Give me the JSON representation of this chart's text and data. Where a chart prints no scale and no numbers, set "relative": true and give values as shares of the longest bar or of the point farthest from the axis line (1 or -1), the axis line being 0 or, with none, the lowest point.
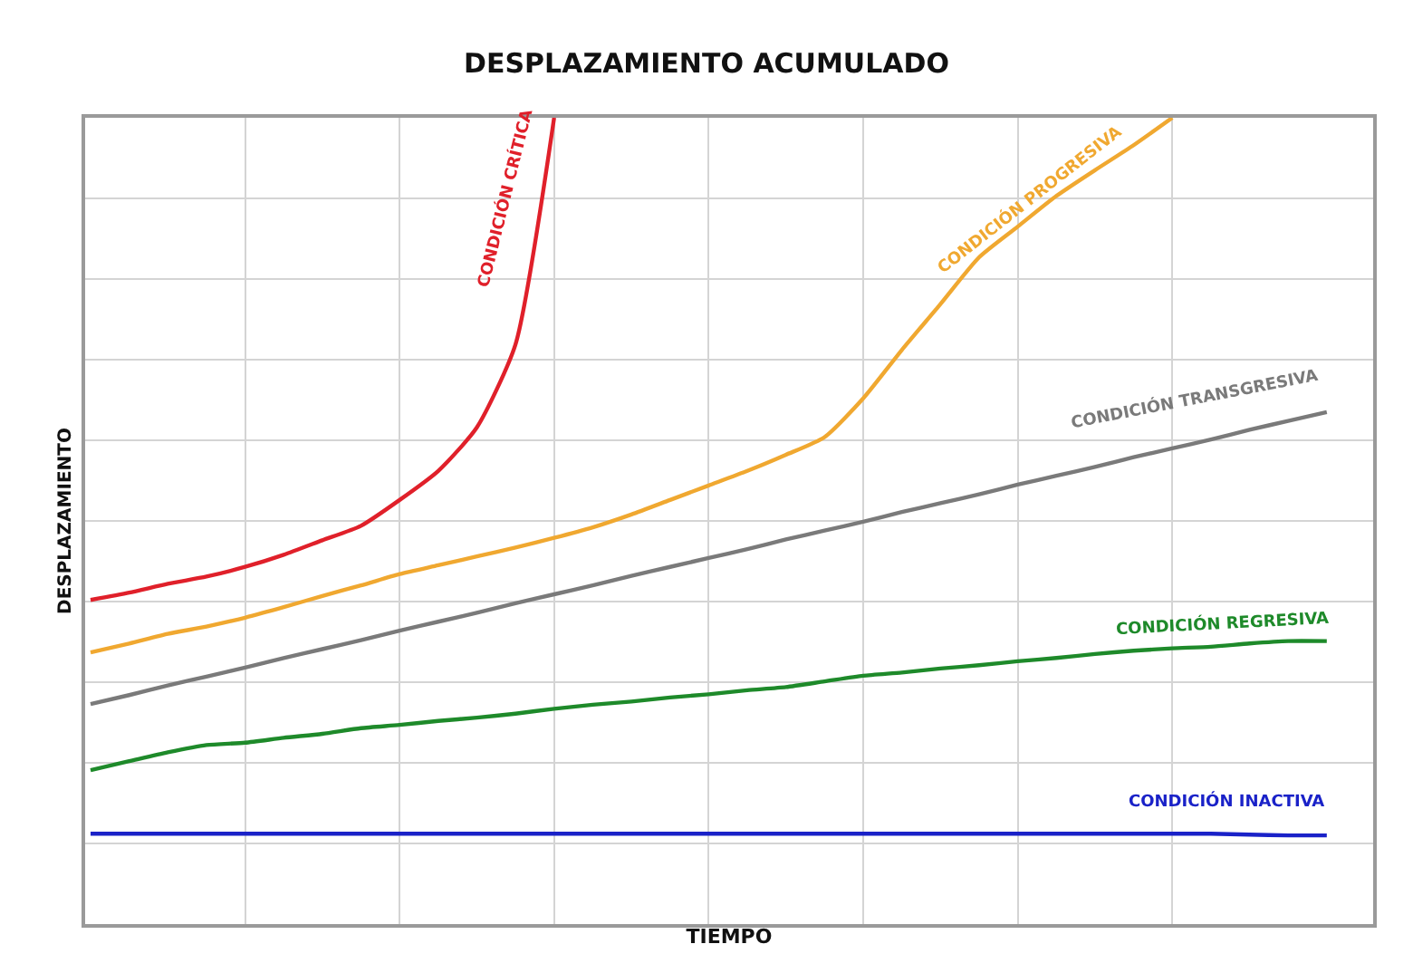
{
  "chart_data": {
    "type": "line",
    "title": "DESPLAZAMIENTO ACUMULADO",
    "xlabel": "TIEMPO",
    "ylabel": "DESPLAZAMIENTO",
    "relative": true,
    "grid": true,
    "legend": false,
    "marker": "none",
    "line_style": "solid",
    "categories": [
      null,
      null,
      null,
      null,
      null,
      null,
      null,
      null,
      null,
      null,
      null,
      null,
      null,
      null,
      null,
      null,
      null,
      null,
      null,
      null,
      null,
      null,
      null,
      null,
      null,
      null,
      null,
      null,
      null,
      null,
      null,
      null,
      null
    ],
    "series": [
      {
        "name": "CONDICIÓN CRÍTICA",
        "color": "#e0202a",
        "values": [
          0.402,
          0.411,
          0.422,
          0.431,
          0.443,
          0.458,
          0.476,
          0.494,
          0.526,
          0.562,
          0.616,
          0.719,
          1.0,
          null,
          null,
          null,
          null,
          null,
          null,
          null,
          null,
          null,
          null,
          null,
          null,
          null,
          null,
          null,
          null,
          null,
          null,
          null,
          null
        ]
      },
      {
        "name": "CONDICIÓN PROGRESIVA",
        "color": "#f0a830",
        "values": [
          0.337,
          0.348,
          0.36,
          0.369,
          0.38,
          0.393,
          0.407,
          0.42,
          0.434,
          0.445,
          0.456,
          0.467,
          0.479,
          0.492,
          0.508,
          0.526,
          0.544,
          0.562,
          0.582,
          0.604,
          0.652,
          0.712,
          0.769,
          0.827,
          0.865,
          0.903,
          0.935,
          0.966,
          1.0,
          null,
          null,
          null,
          null
        ]
      },
      {
        "name": "CONDICIÓN TRANSGRESIVA",
        "color": "#7a7a7a",
        "values": [
          0.273,
          0.284,
          0.296,
          0.307,
          0.318,
          0.33,
          0.341,
          0.352,
          0.364,
          0.375,
          0.386,
          0.398,
          0.409,
          0.42,
          0.432,
          0.443,
          0.454,
          0.465,
          0.477,
          0.488,
          0.499,
          0.511,
          0.522,
          0.533,
          0.545,
          0.556,
          0.567,
          0.579,
          0.59,
          0.601,
          0.613,
          0.624,
          0.635
        ]
      },
      {
        "name": "CONDICIÓN REGRESIVA",
        "color": "#1e8a2a",
        "values": [
          0.191,
          0.202,
          0.213,
          0.222,
          0.225,
          0.231,
          0.236,
          0.243,
          0.247,
          0.252,
          0.256,
          0.261,
          0.267,
          0.272,
          0.276,
          0.281,
          0.285,
          0.29,
          0.294,
          0.301,
          0.308,
          0.312,
          0.317,
          0.321,
          0.326,
          0.33,
          0.335,
          0.339,
          0.342,
          0.344,
          0.348,
          0.351,
          0.351
        ]
      },
      {
        "name": "CONDICIÓN INACTIVA",
        "color": "#1a22c8",
        "values": [
          0.112,
          0.112,
          0.112,
          0.112,
          0.112,
          0.112,
          0.112,
          0.112,
          0.112,
          0.112,
          0.112,
          0.112,
          0.112,
          0.112,
          0.112,
          0.112,
          0.112,
          0.112,
          0.112,
          0.112,
          0.112,
          0.112,
          0.112,
          0.112,
          0.112,
          0.112,
          0.112,
          0.112,
          0.112,
          0.112,
          0.111,
          0.11,
          0.11
        ]
      }
    ]
  }
}
